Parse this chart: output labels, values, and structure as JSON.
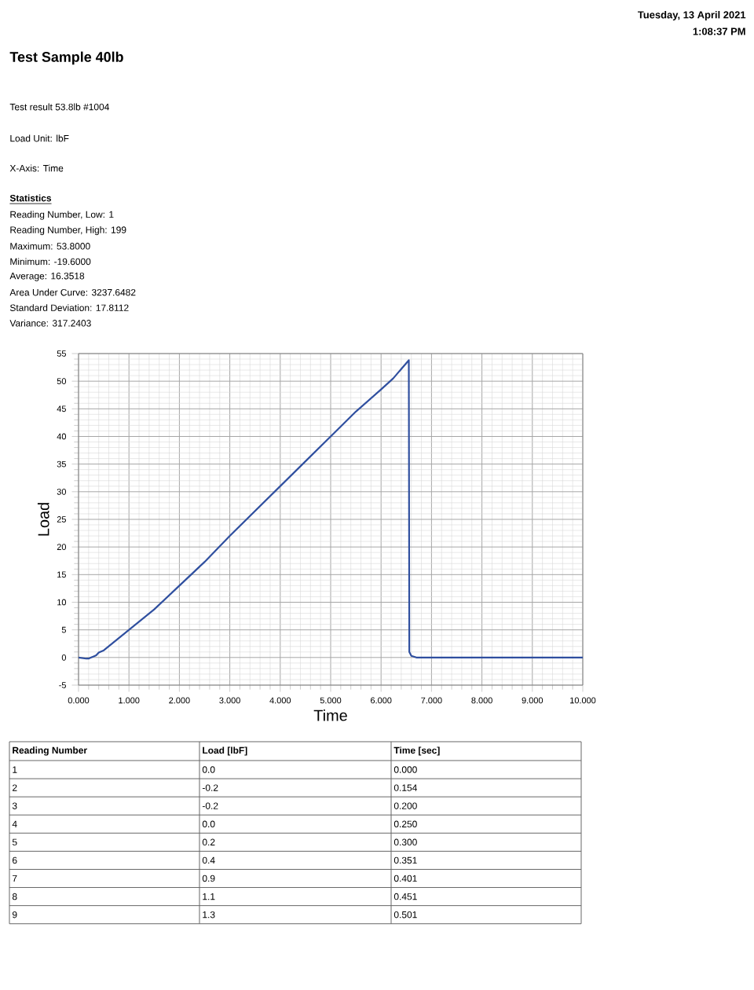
{
  "chart_data": {
    "type": "line",
    "title": "Test Sample 40lb",
    "xlabel": "Time",
    "ylabel": "Load",
    "xlim": [
      0,
      10
    ],
    "ylim": [
      -5,
      55
    ],
    "xticks": [
      {
        "value": 0,
        "label": "0.000"
      },
      {
        "value": 1,
        "label": "1.000"
      },
      {
        "value": 2,
        "label": "2.000"
      },
      {
        "value": 3,
        "label": "3.000"
      },
      {
        "value": 4,
        "label": "4.000"
      },
      {
        "value": 5,
        "label": "5.000"
      },
      {
        "value": 6,
        "label": "6.000"
      },
      {
        "value": 7,
        "label": "7.000"
      },
      {
        "value": 8,
        "label": "8.000"
      },
      {
        "value": 9,
        "label": "9.000"
      },
      {
        "value": 10,
        "label": "10.000"
      }
    ],
    "yticks": [
      -5,
      0,
      5,
      10,
      15,
      20,
      25,
      30,
      35,
      40,
      45,
      50,
      55
    ],
    "grid": true,
    "series": [
      {
        "color": "#2f4f9f",
        "x": [
          0,
          0.154,
          0.2,
          0.25,
          0.3,
          0.351,
          0.401,
          0.451,
          0.501,
          1.0,
          1.5,
          2.0,
          2.5,
          3.0,
          3.5,
          4.0,
          4.5,
          5.0,
          5.5,
          6.0,
          6.24,
          6.55,
          6.56,
          6.6,
          6.7,
          10
        ],
        "values": [
          0,
          -0.2,
          -0.2,
          0,
          0.2,
          0.4,
          0.9,
          1.1,
          1.3,
          5.0,
          8.7,
          13.0,
          17.3,
          22.0,
          26.5,
          31.0,
          35.5,
          40.0,
          44.5,
          48.5,
          50.5,
          53.8,
          1.0,
          0.3,
          0,
          0
        ]
      }
    ],
    "annotations": [
      "Tuesday, 13 April 2021",
      "1:08:37 PM",
      "Test result 53.8lb #1004",
      "Load Unit: lbF",
      "X-Axis: Time",
      "Statistics",
      "Reading Number, Low: 1",
      "Reading Number, High: 199",
      "Maximum: 53.8000",
      "Minimum: -19.6000",
      "Average: 16.3518",
      "Area Under Curve: 3237.6482",
      "Standard Deviation: 17.8112",
      "Variance: 317.2403",
      "Reading Number",
      "Load [lbF]",
      "Time [sec]",
      "1",
      "0.0",
      "0.000",
      "2",
      "-0.2",
      "0.154",
      "3",
      "-0.2",
      "0.200",
      "4",
      "0.0",
      "0.250",
      "5",
      "0.2",
      "0.300",
      "6",
      "0.4",
      "0.351",
      "7",
      "0.9",
      "0.401",
      "8",
      "1.1",
      "0.451",
      "9",
      "1.3",
      "0.501"
    ]
  }
}
